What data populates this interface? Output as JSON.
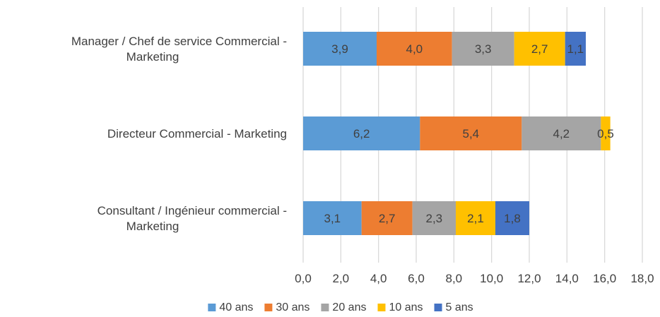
{
  "chart_data": {
    "type": "bar",
    "orientation": "horizontal",
    "stacked": true,
    "categories": [
      [
        "Manager / Chef de service Commercial -",
        "Marketing"
      ],
      [
        "Directeur Commercial - Marketing"
      ],
      [
        "Consultant / Ingénieur commercial -",
        "Marketing"
      ]
    ],
    "series": [
      {
        "name": "40 ans",
        "color": "#5b9bd5",
        "values": [
          3.9,
          6.2,
          3.1
        ],
        "labels": [
          "3,9",
          "6,2",
          "3,1"
        ]
      },
      {
        "name": "30 ans",
        "color": "#ed7d31",
        "values": [
          4.0,
          5.4,
          2.7
        ],
        "labels": [
          "4,0",
          "5,4",
          "2,7"
        ]
      },
      {
        "name": "20 ans",
        "color": "#a5a5a5",
        "values": [
          3.3,
          4.2,
          2.3
        ],
        "labels": [
          "3,3",
          "4,2",
          "2,3"
        ]
      },
      {
        "name": "10 ans",
        "color": "#ffc000",
        "values": [
          2.7,
          0.5,
          2.1
        ],
        "labels": [
          "2,7",
          "0,5",
          "2,1"
        ]
      },
      {
        "name": "5 ans",
        "color": "#4472c4",
        "values": [
          1.1,
          null,
          1.8
        ],
        "labels": [
          "1,1",
          "",
          "1,8"
        ]
      }
    ],
    "xlim": [
      0,
      18
    ],
    "xticks": [
      0,
      2,
      4,
      6,
      8,
      10,
      12,
      14,
      16,
      18
    ],
    "xtick_labels": [
      "0,0",
      "2,0",
      "4,0",
      "6,0",
      "8,0",
      "10,0",
      "12,0",
      "14,0",
      "16,0",
      "18,0"
    ],
    "grid": "vertical",
    "legend_position": "bottom",
    "title": "",
    "xlabel": "",
    "ylabel": ""
  }
}
